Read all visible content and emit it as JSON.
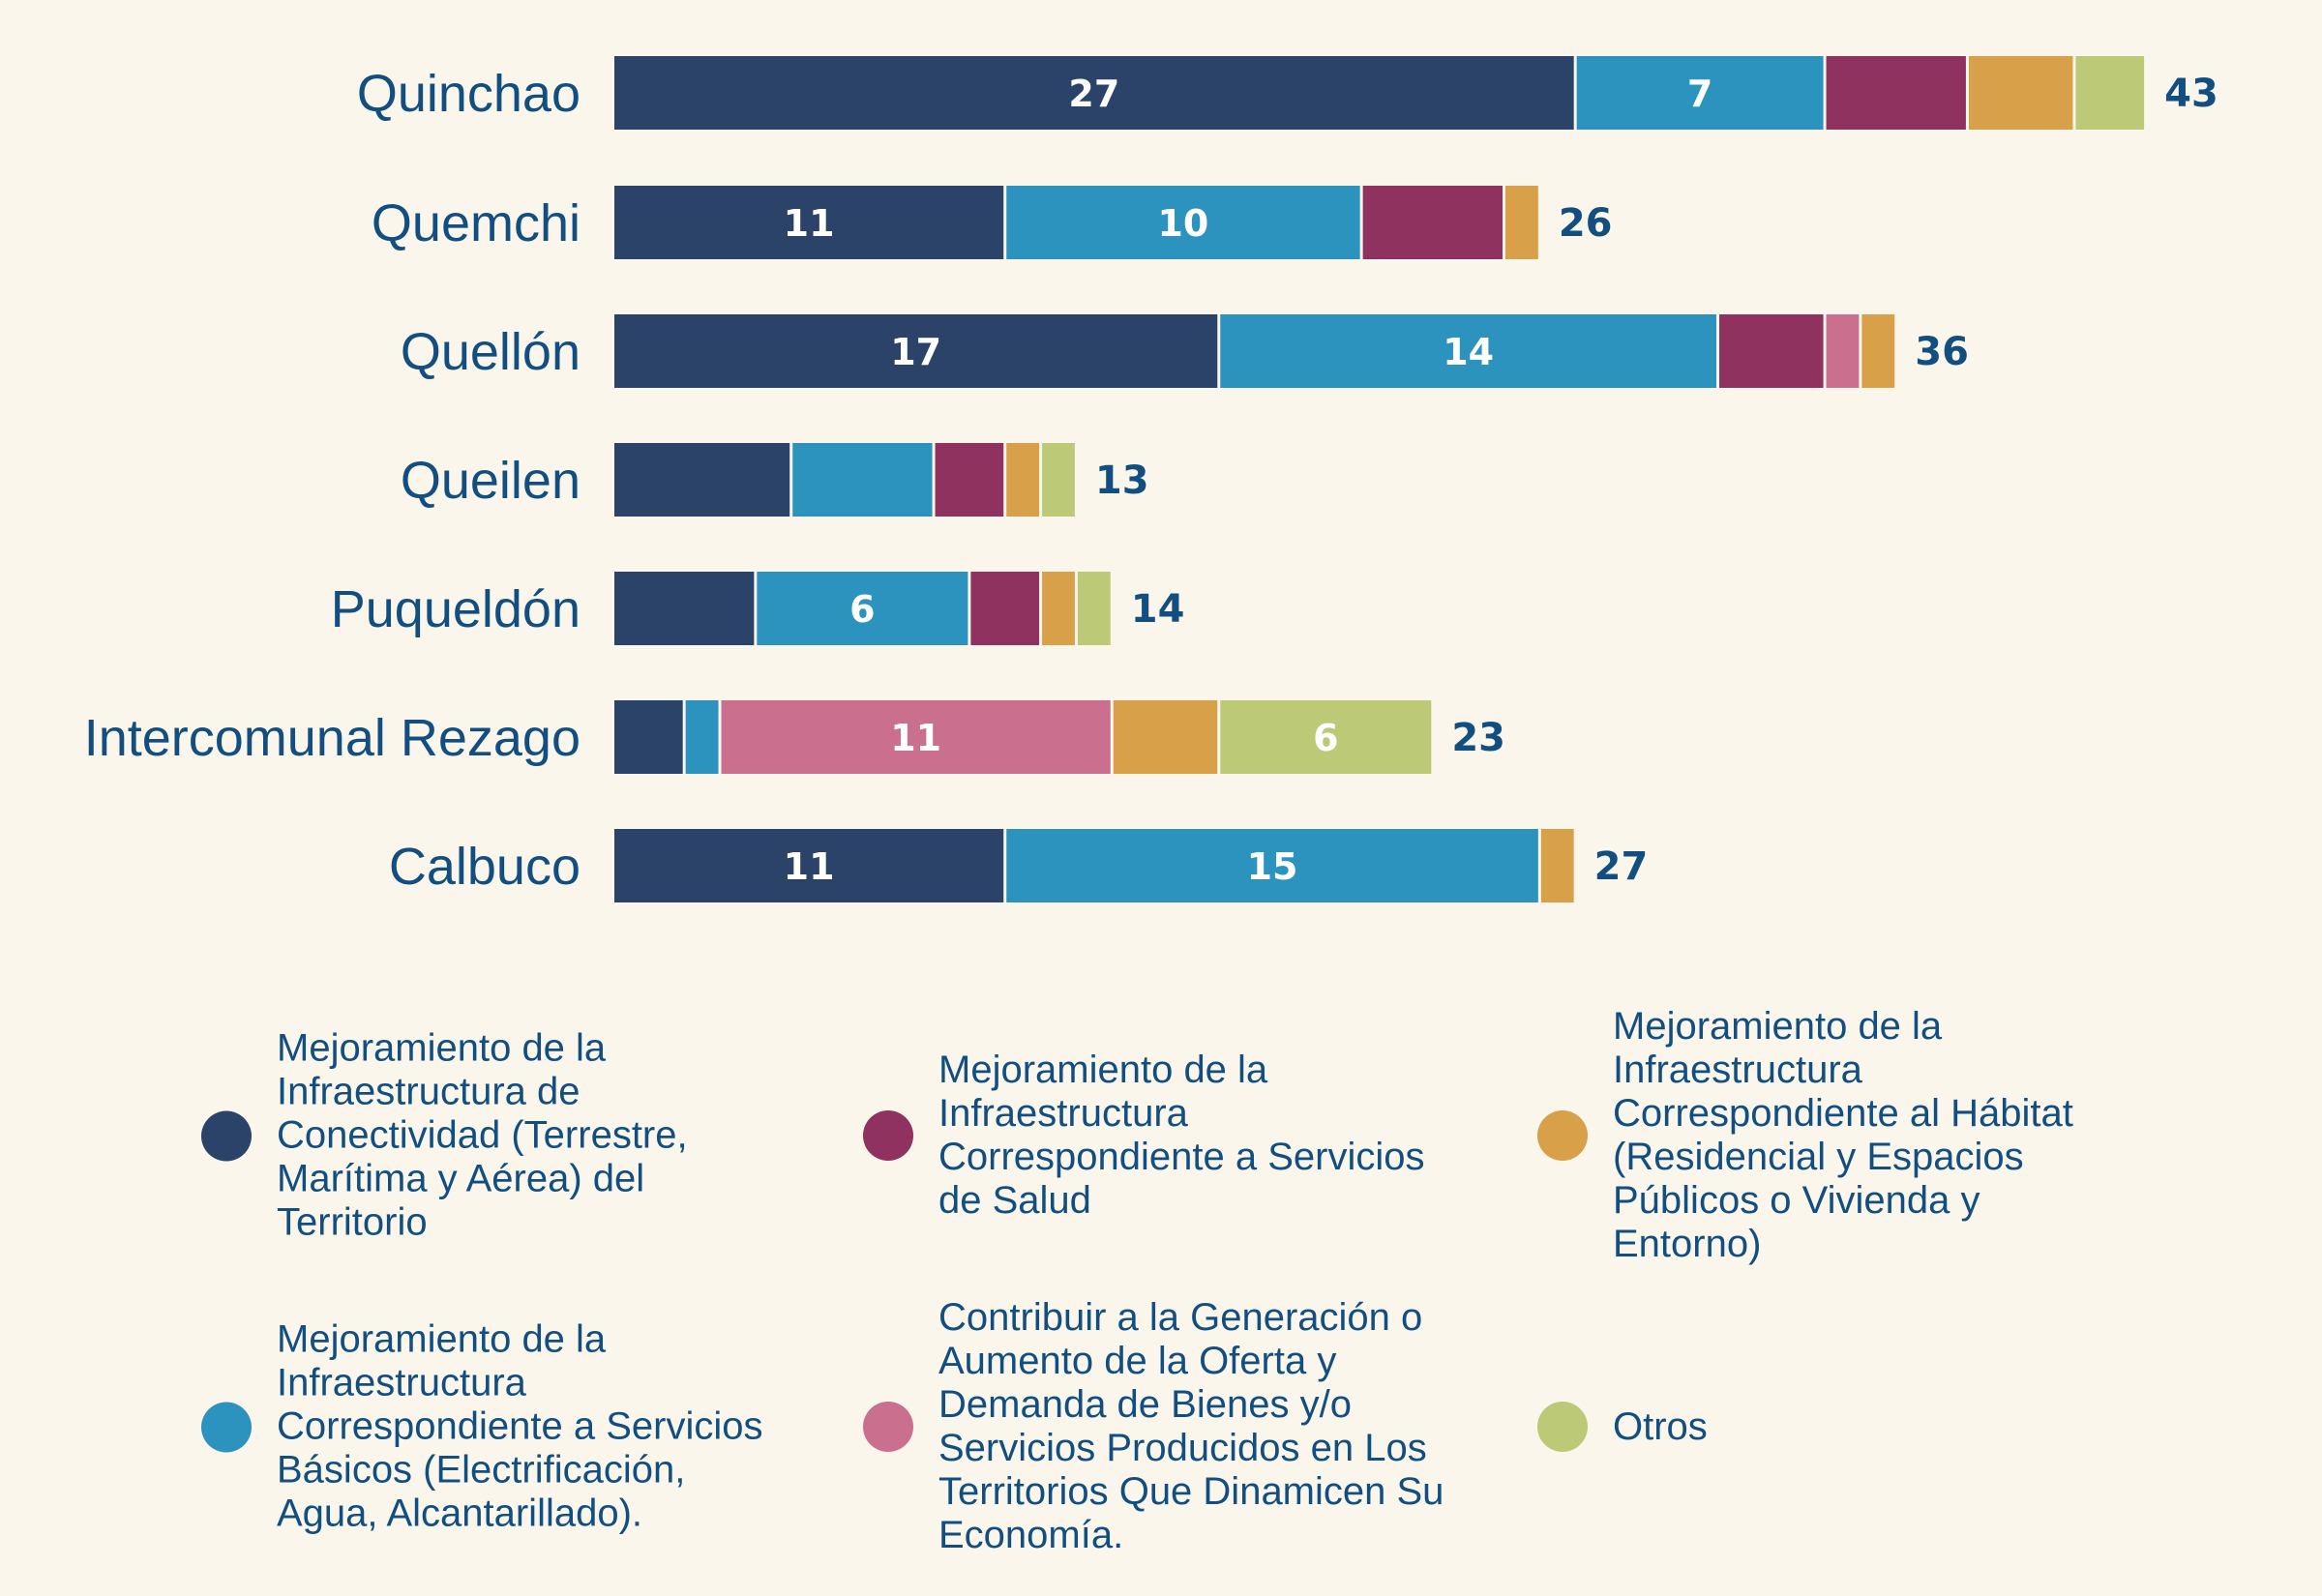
{
  "chart_data": {
    "type": "bar",
    "orientation": "horizontal",
    "stacked": true,
    "title": "",
    "xlabel": "",
    "ylabel": "",
    "grid": false,
    "legend_position": "bottom",
    "categories": [
      "Quinchao",
      "Quemchi",
      "Quellón",
      "Queilen",
      "Puqueldón",
      "Intercomunal Rezago",
      "Calbuco"
    ],
    "series": [
      {
        "name": "Mejoramiento de la Infraestructura de Conectividad (Terrestre, Marítima y Aérea) del Territorio",
        "color": "#2b4368",
        "values": [
          27,
          11,
          17,
          5,
          4,
          2,
          11
        ],
        "labels": [
          "27",
          "11",
          "17",
          "",
          "",
          "",
          "11"
        ]
      },
      {
        "name": "Mejoramiento de la Infraestructura Correspondiente a Servicios Básicos (Electrificación, Agua, Alcantarillado).",
        "color": "#2b93bd",
        "values": [
          7,
          10,
          14,
          4,
          6,
          1,
          15
        ],
        "labels": [
          "7",
          "10",
          "14",
          "",
          "6",
          "",
          "15"
        ]
      },
      {
        "name": "Mejoramiento de la Infraestructura Correspondiente a Servicios de Salud",
        "color": "#90325f",
        "values": [
          4,
          4,
          3,
          2,
          2,
          0,
          0
        ],
        "labels": [
          "",
          "",
          "",
          "",
          "",
          "",
          ""
        ]
      },
      {
        "name": "Contribuir a la Generación o Aumento de la Oferta y Demanda de Bienes y/o Servicios Producidos en Los Territorios Que Dinamicen Su Economía.",
        "color": "#cb6f8e",
        "values": [
          0,
          0,
          1,
          0,
          0,
          11,
          0
        ],
        "labels": [
          "",
          "",
          "",
          "",
          "",
          "11",
          ""
        ]
      },
      {
        "name": "Mejoramiento de la Infraestructura Correspondiente al Hábitat (Residencial y Espacios Públicos o Vivienda y Entorno)",
        "color": "#d9a04a",
        "values": [
          3,
          1,
          1,
          1,
          1,
          3,
          1
        ],
        "labels": [
          "",
          "",
          "",
          "",
          "",
          "",
          ""
        ]
      },
      {
        "name": "Otros",
        "color": "#bcca78",
        "values": [
          2,
          0,
          0,
          1,
          1,
          6,
          0
        ],
        "labels": [
          "",
          "",
          "",
          "",
          "",
          "6",
          ""
        ]
      }
    ],
    "totals": [
      43,
      26,
      36,
      13,
      14,
      23,
      27
    ]
  },
  "legend": {
    "items": [
      {
        "text": "Mejoramiento de la\nInfraestructura de\nConectividad (Terrestre,\nMarítima y Aérea) del\nTerritorio",
        "color": "#2b4368"
      },
      {
        "text": "Mejoramiento de la\nInfraestructura\nCorrespondiente a Servicios\nde Salud",
        "color": "#90325f"
      },
      {
        "text": "Mejoramiento de la\nInfraestructura\nCorrespondiente al Hábitat\n(Residencial y Espacios\nPúblicos o Vivienda y\nEntorno)",
        "color": "#d9a04a"
      },
      {
        "text": "Mejoramiento de la\nInfraestructura\nCorrespondiente a Servicios\nBásicos (Electrificación,\nAgua, Alcantarillado).",
        "color": "#2b93bd"
      },
      {
        "text": "Contribuir a la Generación o\nAumento de la Oferta y\nDemanda de Bienes y/o\nServicios Producidos en Los\nTerritorios Que Dinamicen Su\nEconomía.",
        "color": "#cb6f8e"
      },
      {
        "text": "Otros",
        "color": "#bcca78"
      }
    ]
  }
}
